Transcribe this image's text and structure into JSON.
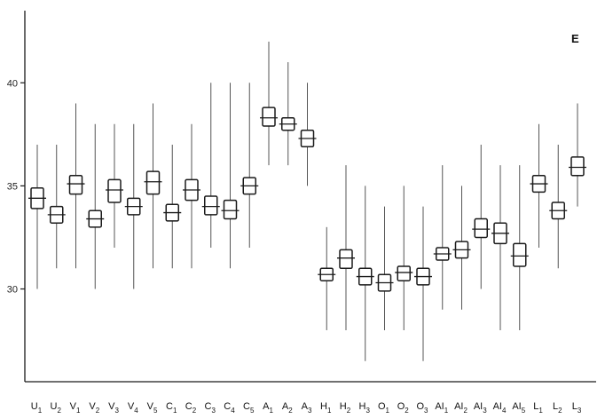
{
  "chart_data": {
    "type": "boxplot",
    "panel_label": "E",
    "ylim": [
      25.5,
      43.5
    ],
    "yticks": [
      30,
      35,
      40
    ],
    "ytick_labels": [
      "30",
      "35",
      "40"
    ],
    "grid": false,
    "categories": [
      {
        "base": "U",
        "sub": "1"
      },
      {
        "base": "U",
        "sub": "2"
      },
      {
        "base": "V",
        "sub": "1"
      },
      {
        "base": "V",
        "sub": "2"
      },
      {
        "base": "V",
        "sub": "3"
      },
      {
        "base": "V",
        "sub": "4"
      },
      {
        "base": "V",
        "sub": "5"
      },
      {
        "base": "C",
        "sub": "1"
      },
      {
        "base": "C",
        "sub": "2"
      },
      {
        "base": "C",
        "sub": "3"
      },
      {
        "base": "C",
        "sub": "4"
      },
      {
        "base": "C",
        "sub": "5"
      },
      {
        "base": "A",
        "sub": "1"
      },
      {
        "base": "A",
        "sub": "2"
      },
      {
        "base": "A",
        "sub": "3"
      },
      {
        "base": "H",
        "sub": "1"
      },
      {
        "base": "H",
        "sub": "2"
      },
      {
        "base": "H",
        "sub": "3"
      },
      {
        "base": "O",
        "sub": "1"
      },
      {
        "base": "O",
        "sub": "2"
      },
      {
        "base": "O",
        "sub": "3"
      },
      {
        "base": "AI",
        "sub": "1"
      },
      {
        "base": "AI",
        "sub": "2"
      },
      {
        "base": "AI",
        "sub": "3"
      },
      {
        "base": "AI",
        "sub": "4"
      },
      {
        "base": "AI",
        "sub": "5"
      },
      {
        "base": "L",
        "sub": "1"
      },
      {
        "base": "L",
        "sub": "2"
      },
      {
        "base": "L",
        "sub": "3"
      }
    ],
    "series": [
      {
        "values": [
          {
            "mean": 34.4,
            "box": [
              33.9,
              34.9
            ],
            "range": [
              30.0,
              37.0
            ]
          },
          {
            "mean": 33.6,
            "box": [
              33.2,
              34.0
            ],
            "range": [
              31.0,
              37.0
            ]
          },
          {
            "mean": 35.1,
            "box": [
              34.6,
              35.5
            ],
            "range": [
              31.0,
              39.0
            ]
          },
          {
            "mean": 33.4,
            "box": [
              33.0,
              33.8
            ],
            "range": [
              30.0,
              38.0
            ]
          },
          {
            "mean": 34.8,
            "box": [
              34.2,
              35.3
            ],
            "range": [
              32.0,
              38.0
            ]
          },
          {
            "mean": 34.0,
            "box": [
              33.6,
              34.4
            ],
            "range": [
              30.0,
              38.0
            ]
          },
          {
            "mean": 35.2,
            "box": [
              34.6,
              35.7
            ],
            "range": [
              31.0,
              39.0
            ]
          },
          {
            "mean": 33.7,
            "box": [
              33.3,
              34.1
            ],
            "range": [
              31.0,
              37.0
            ]
          },
          {
            "mean": 34.8,
            "box": [
              34.3,
              35.3
            ],
            "range": [
              31.0,
              38.0
            ]
          },
          {
            "mean": 34.0,
            "box": [
              33.6,
              34.5
            ],
            "range": [
              32.0,
              40.0
            ]
          },
          {
            "mean": 33.8,
            "box": [
              33.4,
              34.3
            ],
            "range": [
              31.0,
              40.0
            ]
          },
          {
            "mean": 35.0,
            "box": [
              34.6,
              35.4
            ],
            "range": [
              32.0,
              40.0
            ]
          },
          {
            "mean": 38.3,
            "box": [
              37.9,
              38.8
            ],
            "range": [
              36.0,
              42.0
            ]
          },
          {
            "mean": 38.0,
            "box": [
              37.7,
              38.3
            ],
            "range": [
              36.0,
              41.0
            ]
          },
          {
            "mean": 37.3,
            "box": [
              36.9,
              37.7
            ],
            "range": [
              35.0,
              40.0
            ]
          },
          {
            "mean": 30.7,
            "box": [
              30.4,
              31.0
            ],
            "range": [
              28.0,
              33.0
            ]
          },
          {
            "mean": 31.5,
            "box": [
              31.0,
              31.9
            ],
            "range": [
              28.0,
              36.0
            ]
          },
          {
            "mean": 30.6,
            "box": [
              30.2,
              31.0
            ],
            "range": [
              26.5,
              35.0
            ]
          },
          {
            "mean": 30.3,
            "box": [
              29.9,
              30.7
            ],
            "range": [
              28.0,
              34.0
            ]
          },
          {
            "mean": 30.8,
            "box": [
              30.4,
              31.1
            ],
            "range": [
              28.0,
              35.0
            ]
          },
          {
            "mean": 30.6,
            "box": [
              30.2,
              31.0
            ],
            "range": [
              26.5,
              34.0
            ]
          },
          {
            "mean": 31.7,
            "box": [
              31.4,
              32.0
            ],
            "range": [
              29.0,
              36.0
            ]
          },
          {
            "mean": 31.9,
            "box": [
              31.5,
              32.3
            ],
            "range": [
              29.0,
              35.0
            ]
          },
          {
            "mean": 32.9,
            "box": [
              32.5,
              33.4
            ],
            "range": [
              30.0,
              37.0
            ]
          },
          {
            "mean": 32.7,
            "box": [
              32.2,
              33.2
            ],
            "range": [
              28.0,
              36.0
            ]
          },
          {
            "mean": 31.6,
            "box": [
              31.1,
              32.2
            ],
            "range": [
              28.0,
              36.0
            ]
          },
          {
            "mean": 35.1,
            "box": [
              34.7,
              35.5
            ],
            "range": [
              32.0,
              38.0
            ]
          },
          {
            "mean": 33.8,
            "box": [
              33.4,
              34.2
            ],
            "range": [
              31.0,
              37.0
            ]
          },
          {
            "mean": 35.9,
            "box": [
              35.5,
              36.4
            ],
            "range": [
              34.0,
              39.0
            ]
          }
        ]
      }
    ],
    "colors": {
      "ink": "#1a1a1a",
      "whisker": "#555555"
    }
  }
}
